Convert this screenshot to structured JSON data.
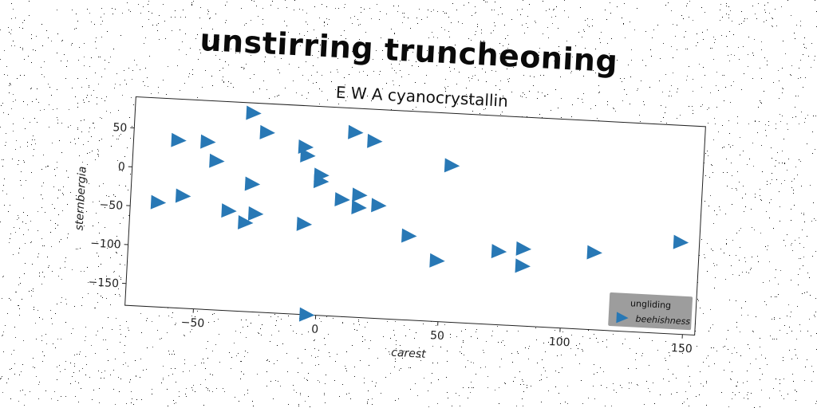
{
  "page": {
    "suptitle": "unstirring truncheoning"
  },
  "colors": {
    "marker": "#2878b5",
    "legend_bg": "#8c8c8c",
    "axis": "#222222"
  },
  "chart_data": {
    "type": "scatter",
    "title": "E W A cyanocrystallin",
    "xlabel": "carest",
    "ylabel": "sternbergia",
    "xlim": [
      -78,
      155
    ],
    "ylim": [
      -178,
      90
    ],
    "xticks": [
      -50,
      0,
      50,
      100,
      150
    ],
    "yticks": [
      50,
      0,
      -50,
      -100,
      -150
    ],
    "marker": "triangle-right",
    "legend": {
      "title": "ungliding",
      "placement": "lower-right",
      "entries": [
        "beehishness"
      ]
    },
    "series": [
      {
        "name": "beehishness",
        "x": [
          -30,
          -24,
          -60,
          -48,
          -44,
          -8,
          -7,
          -1,
          12,
          20,
          -1,
          -29,
          -57,
          -67,
          -38,
          -27,
          -31,
          -7,
          8,
          15,
          15,
          23,
          36,
          48,
          52,
          73,
          83,
          83,
          112,
          147,
          -4
        ],
        "y": [
          77,
          53,
          37,
          37,
          13,
          37,
          26,
          2,
          59,
          49,
          -6,
          -14,
          -34,
          -44,
          -50,
          -52,
          -64,
          -62,
          -28,
          -21,
          -37,
          -33,
          -70,
          -100,
          23,
          -84,
          -79,
          -101,
          -79,
          -60,
          -178
        ]
      }
    ]
  }
}
